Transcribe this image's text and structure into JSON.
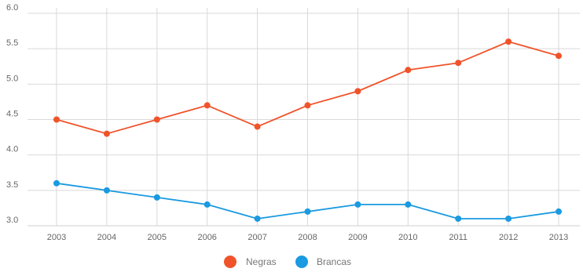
{
  "chart_data": {
    "type": "line",
    "title": "",
    "xlabel": "",
    "ylabel": "",
    "x": [
      "2003",
      "2004",
      "2005",
      "2006",
      "2007",
      "2008",
      "2009",
      "2010",
      "2011",
      "2012",
      "2013"
    ],
    "ylim": [
      3.0,
      6.0
    ],
    "yticks": [
      "3.0",
      "3.5",
      "4.0",
      "4.5",
      "5.0",
      "5.5",
      "6.0"
    ],
    "grid": true,
    "legend_position": "bottom-center",
    "series": [
      {
        "name": "Negras",
        "color": "#f0532a",
        "values": [
          4.5,
          4.3,
          4.5,
          4.7,
          4.4,
          4.7,
          4.9,
          5.2,
          5.3,
          5.6,
          5.4
        ]
      },
      {
        "name": "Brancas",
        "color": "#1a9ae0",
        "values": [
          3.6,
          3.5,
          3.4,
          3.3,
          3.1,
          3.2,
          3.3,
          3.3,
          3.1,
          3.1,
          3.2
        ]
      }
    ]
  }
}
